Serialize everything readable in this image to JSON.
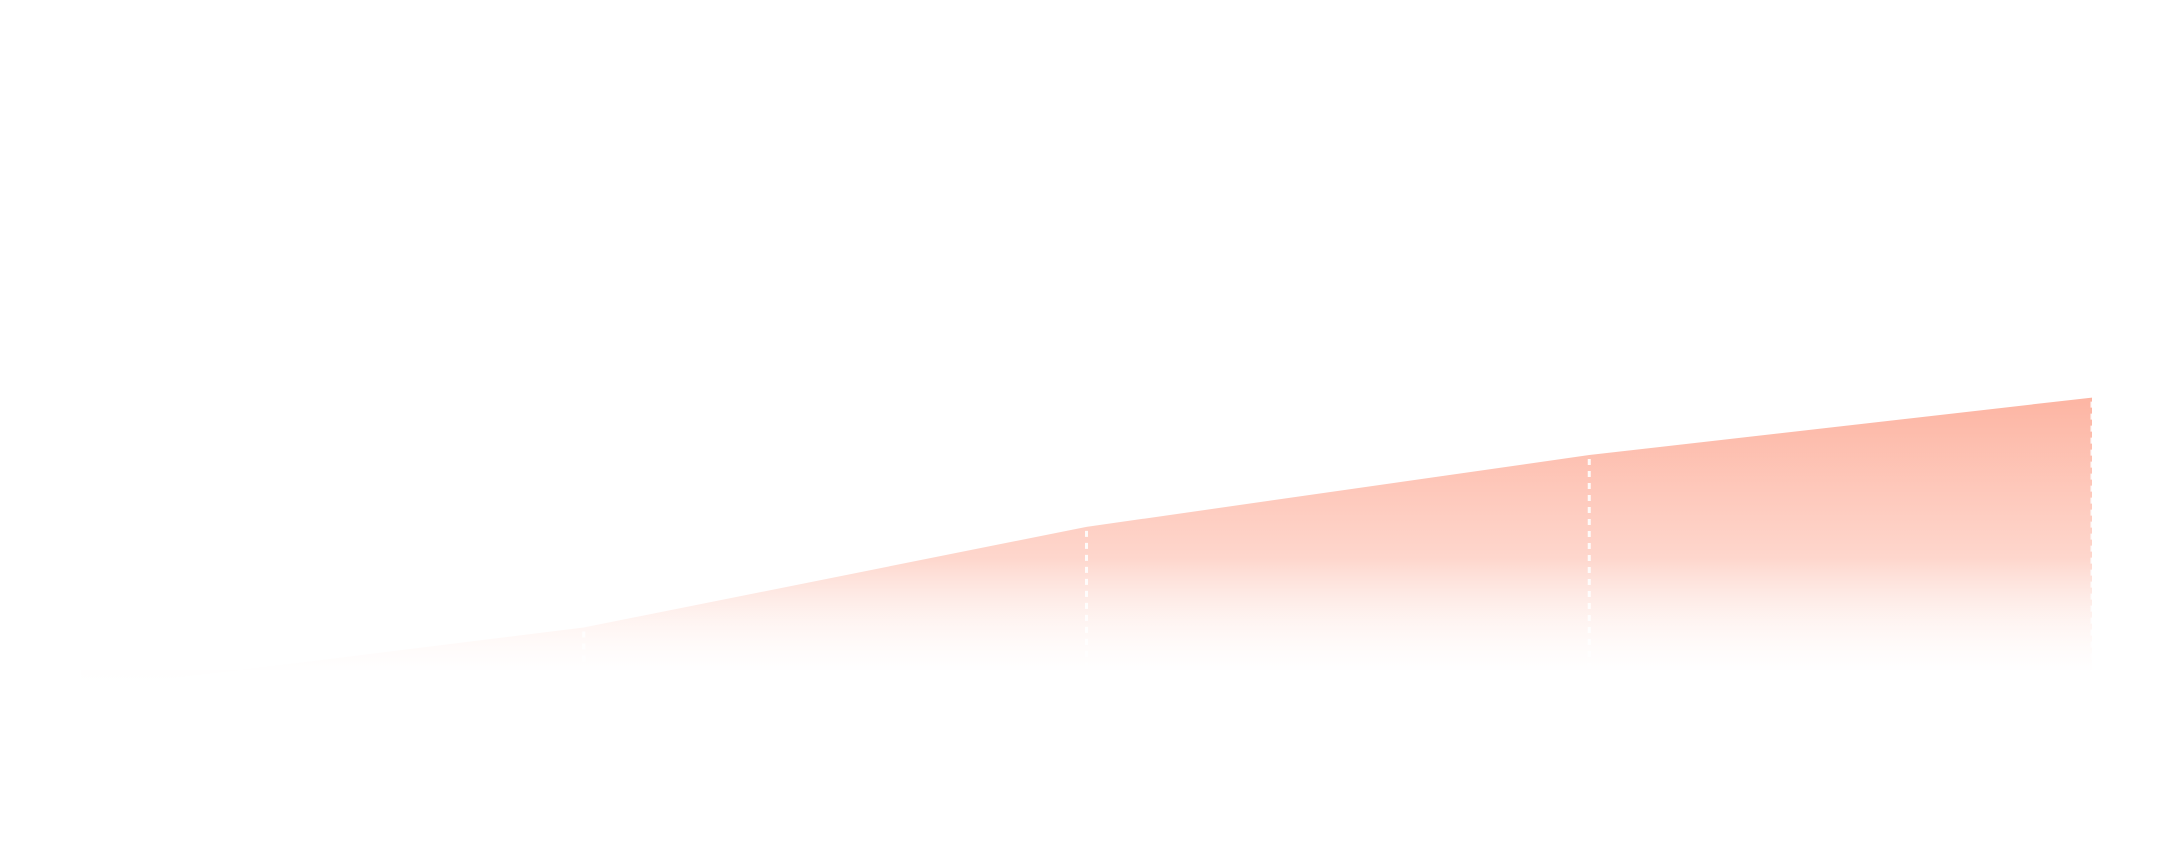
{
  "chart_data": {
    "type": "area",
    "x": [
      1,
      2,
      3,
      4,
      5
    ],
    "values": [
      56,
      69,
      90,
      105,
      117
    ],
    "ylim": [
      0,
      200
    ],
    "grid": false,
    "drop_lines": true,
    "title": "",
    "xlabel": "",
    "ylabel": ""
  },
  "colors": {
    "fill_top": "#fdb5a3",
    "fill_bottom": "#ffffff",
    "drop_line": "#ffffff",
    "background": "#ffffff"
  }
}
